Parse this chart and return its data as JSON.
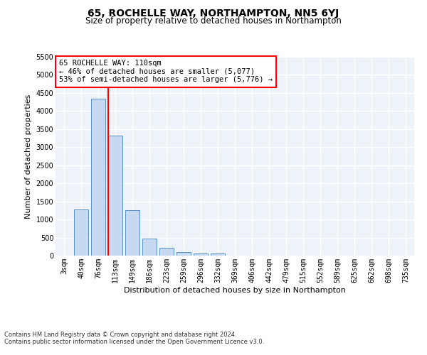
{
  "title": "65, ROCHELLE WAY, NORTHAMPTON, NN5 6YJ",
  "subtitle": "Size of property relative to detached houses in Northampton",
  "xlabel": "Distribution of detached houses by size in Northampton",
  "ylabel": "Number of detached properties",
  "footnote1": "Contains HM Land Registry data © Crown copyright and database right 2024.",
  "footnote2": "Contains public sector information licensed under the Open Government Licence v3.0.",
  "annotation_title": "65 ROCHELLE WAY: 110sqm",
  "annotation_line1": "← 46% of detached houses are smaller (5,077)",
  "annotation_line2": "53% of semi-detached houses are larger (5,776) →",
  "bar_categories": [
    "3sqm",
    "40sqm",
    "76sqm",
    "113sqm",
    "149sqm",
    "186sqm",
    "223sqm",
    "259sqm",
    "296sqm",
    "332sqm",
    "369sqm",
    "406sqm",
    "442sqm",
    "479sqm",
    "515sqm",
    "552sqm",
    "589sqm",
    "625sqm",
    "662sqm",
    "698sqm",
    "735sqm"
  ],
  "bar_values": [
    0,
    1270,
    4350,
    3310,
    1260,
    480,
    220,
    90,
    65,
    55,
    0,
    0,
    0,
    0,
    0,
    0,
    0,
    0,
    0,
    0,
    0
  ],
  "bar_color": "#c6d9f0",
  "bar_edge_color": "#5a8fc3",
  "property_line_x": 2.57,
  "property_line_color": "red",
  "ylim": [
    0,
    5500
  ],
  "yticks": [
    0,
    500,
    1000,
    1500,
    2000,
    2500,
    3000,
    3500,
    4000,
    4500,
    5000,
    5500
  ],
  "annotation_box_color": "red",
  "bg_color": "#eef2f9",
  "grid_color": "#ffffff",
  "title_fontsize": 10,
  "subtitle_fontsize": 8.5,
  "axis_label_fontsize": 8,
  "tick_fontsize": 7,
  "annotation_fontsize": 7.5
}
